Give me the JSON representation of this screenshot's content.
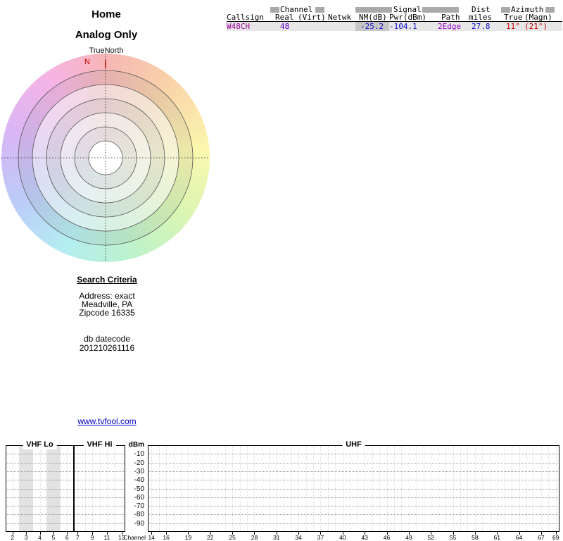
{
  "page": {
    "title": "Home",
    "subtitle": "Analog Only"
  },
  "radar": {
    "orientation": "TrueNorth",
    "north": "N"
  },
  "table": {
    "groups": {
      "channel": "Channel",
      "signal": "Signal",
      "dist": "Dist",
      "azimuth": "Azimuth"
    },
    "columns": {
      "callsign": "Callsign",
      "real": "Real",
      "virt": "(Virt)",
      "netwk": "Netwk",
      "nm": "NM(dB)",
      "pwr": "Pwr(dBm)",
      "path": "Path",
      "miles": "miles",
      "true": "True",
      "magn": "(Magn)"
    },
    "rows": [
      {
        "callsign": "W48CH",
        "real": "48",
        "virt": "",
        "netwk": "",
        "nm": "-25.2",
        "pwr": "-104.1",
        "path": "2Edge",
        "miles": "27.8",
        "true_az": "11°",
        "magn_az": "(21°)"
      }
    ]
  },
  "search_criteria": {
    "title": "Search Criteria",
    "lines": [
      "Address: exact",
      "Meadville, PA",
      "Zipcode 16335"
    ],
    "db_label": "db datecode",
    "db_value": "201210261116"
  },
  "footer_link": "www.tvfool.com",
  "colors": {
    "callsign": "#990099",
    "channel": "#6600cc",
    "signal_blue": "#1111cc",
    "path_purple": "#9900cc",
    "azimuth_red": "#cc0000",
    "link_blue": "#0000bb",
    "north_red": "#cc0000",
    "row_bg": "#e7e7e7",
    "nm_cell_bg": "#c6c6c6",
    "band_gray": "#e2e2e2"
  },
  "chart_data": [
    {
      "type": "polar",
      "description": "Azimuth compass plot with concentric range rings and pastel direction color wheel",
      "orientation_label": "TrueNorth",
      "north_label": "N",
      "rings": 6,
      "stations_plotted": []
    },
    {
      "type": "spectrum",
      "ylabel": "dBm",
      "xlabel": "Channel",
      "ylim": [
        -90,
        -10
      ],
      "yticks": [
        -10,
        -20,
        -30,
        -40,
        -50,
        -60,
        -70,
        -80,
        -90
      ],
      "panels": [
        {
          "label": "VHF Lo",
          "range": [
            2,
            6
          ],
          "tick_labels": [
            "2",
            "3",
            "4",
            "5",
            "6"
          ],
          "highlighted_channels": [
            3,
            5
          ]
        },
        {
          "label": "VHF Hi",
          "range": [
            7,
            13
          ],
          "tick_labels": [
            "7",
            "9",
            "11",
            "13"
          ]
        },
        {
          "label": "UHF",
          "range": [
            14,
            69
          ],
          "tick_labels": [
            "14",
            "16",
            "19",
            "22",
            "25",
            "28",
            "31",
            "34",
            "37",
            "40",
            "43",
            "46",
            "49",
            "52",
            "55",
            "58",
            "61",
            "64",
            "67",
            "69"
          ]
        }
      ],
      "signals": [
        {
          "callsign": "W48CH",
          "channel": 48,
          "power_dbm": -104.1,
          "below_chart_range": true
        }
      ]
    }
  ]
}
